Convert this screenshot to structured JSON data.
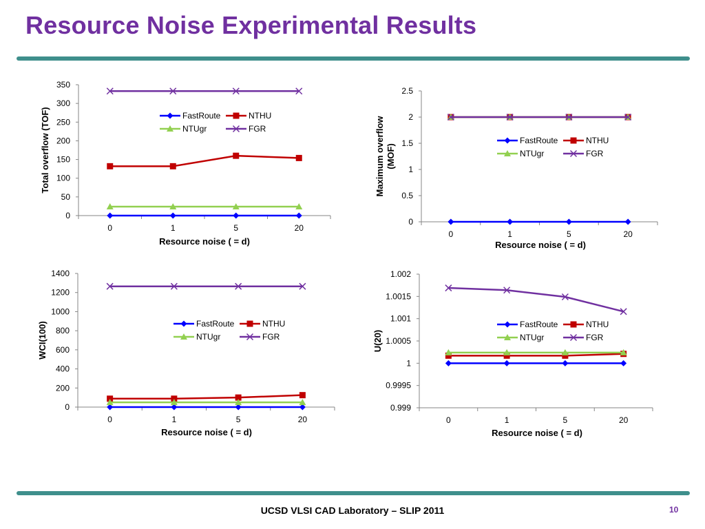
{
  "slide": {
    "title": "Resource Noise Experimental Results",
    "footer": "UCSD VLSI CAD Laboratory – SLIP 2011",
    "page_number": "10"
  },
  "colors": {
    "title": "#7030a0",
    "rule": "#3f8f8c",
    "FastRoute": "#0000ff",
    "NTHU": "#c00000",
    "NTUgr": "#92d050",
    "FGR": "#7030a0"
  },
  "chart_data": [
    {
      "type": "line",
      "categories": [
        "0",
        "1",
        "5",
        "20"
      ],
      "xlabel": "Resource noise ( = d)",
      "ylabel": [
        "Total overflow (TOF)"
      ],
      "ylim": [
        0,
        350
      ],
      "yticks": [
        "0",
        "50",
        "100",
        "150",
        "200",
        "250",
        "300",
        "350"
      ],
      "legend_position": "top-center",
      "series": [
        {
          "name": "FastRoute",
          "marker": "diamond",
          "values": [
            0,
            0,
            0,
            0
          ]
        },
        {
          "name": "NTHU",
          "marker": "square",
          "values": [
            132,
            132,
            160,
            154
          ]
        },
        {
          "name": "NTUgr",
          "marker": "triangle",
          "values": [
            24,
            24,
            24,
            24
          ]
        },
        {
          "name": "FGR",
          "marker": "x",
          "values": [
            333,
            333,
            333,
            333
          ]
        }
      ]
    },
    {
      "type": "line",
      "categories": [
        "0",
        "1",
        "5",
        "20"
      ],
      "xlabel": "Resource noise ( = d)",
      "ylabel": [
        "Maximum overflow",
        "(MOF)"
      ],
      "ylim": [
        0,
        2.5
      ],
      "yticks": [
        "0",
        "0.5",
        "1",
        "1.5",
        "2",
        "2.5"
      ],
      "legend_position": "center-right",
      "series": [
        {
          "name": "FastRoute",
          "marker": "diamond",
          "values": [
            0,
            0,
            0,
            0
          ]
        },
        {
          "name": "NTHU",
          "marker": "square",
          "values": [
            2,
            2,
            2,
            2
          ]
        },
        {
          "name": "NTUgr",
          "marker": "triangle",
          "values": [
            2,
            2,
            2,
            2
          ]
        },
        {
          "name": "FGR",
          "marker": "x",
          "values": [
            2,
            2,
            2,
            2
          ]
        }
      ]
    },
    {
      "type": "line",
      "categories": [
        "0",
        "1",
        "5",
        "20"
      ],
      "xlabel": "Resource noise ( = d)",
      "ylabel": [
        "WCI(100)"
      ],
      "ylim": [
        0,
        1400
      ],
      "yticks": [
        "0",
        "200",
        "400",
        "600",
        "800",
        "1000",
        "1200",
        "1400"
      ],
      "legend_position": "center-right",
      "series": [
        {
          "name": "FastRoute",
          "marker": "diamond",
          "values": [
            0,
            0,
            0,
            0
          ]
        },
        {
          "name": "NTHU",
          "marker": "square",
          "values": [
            88,
            88,
            100,
            125
          ]
        },
        {
          "name": "NTUgr",
          "marker": "triangle",
          "values": [
            50,
            50,
            50,
            50
          ]
        },
        {
          "name": "FGR",
          "marker": "x",
          "values": [
            1265,
            1265,
            1265,
            1265
          ]
        }
      ]
    },
    {
      "type": "line",
      "categories": [
        "0",
        "1",
        "5",
        "20"
      ],
      "xlabel": "Resource noise ( = d)",
      "ylabel": [
        "U(20)"
      ],
      "ylim": [
        0.999,
        1.002
      ],
      "yticks": [
        "0.999",
        "0.9995",
        "1",
        "1.0005",
        "1.001",
        "1.0015",
        "1.002"
      ],
      "legend_position": "center-right",
      "series": [
        {
          "name": "FastRoute",
          "marker": "diamond",
          "values": [
            1.0,
            1.0,
            1.0,
            1.0
          ]
        },
        {
          "name": "NTHU",
          "marker": "square",
          "values": [
            1.00017,
            1.00017,
            1.00017,
            1.00021
          ]
        },
        {
          "name": "NTUgr",
          "marker": "triangle",
          "values": [
            1.00024,
            1.00024,
            1.00024,
            1.00024
          ]
        },
        {
          "name": "FGR",
          "marker": "x",
          "values": [
            1.00169,
            1.00164,
            1.00149,
            1.00116
          ]
        }
      ]
    }
  ]
}
